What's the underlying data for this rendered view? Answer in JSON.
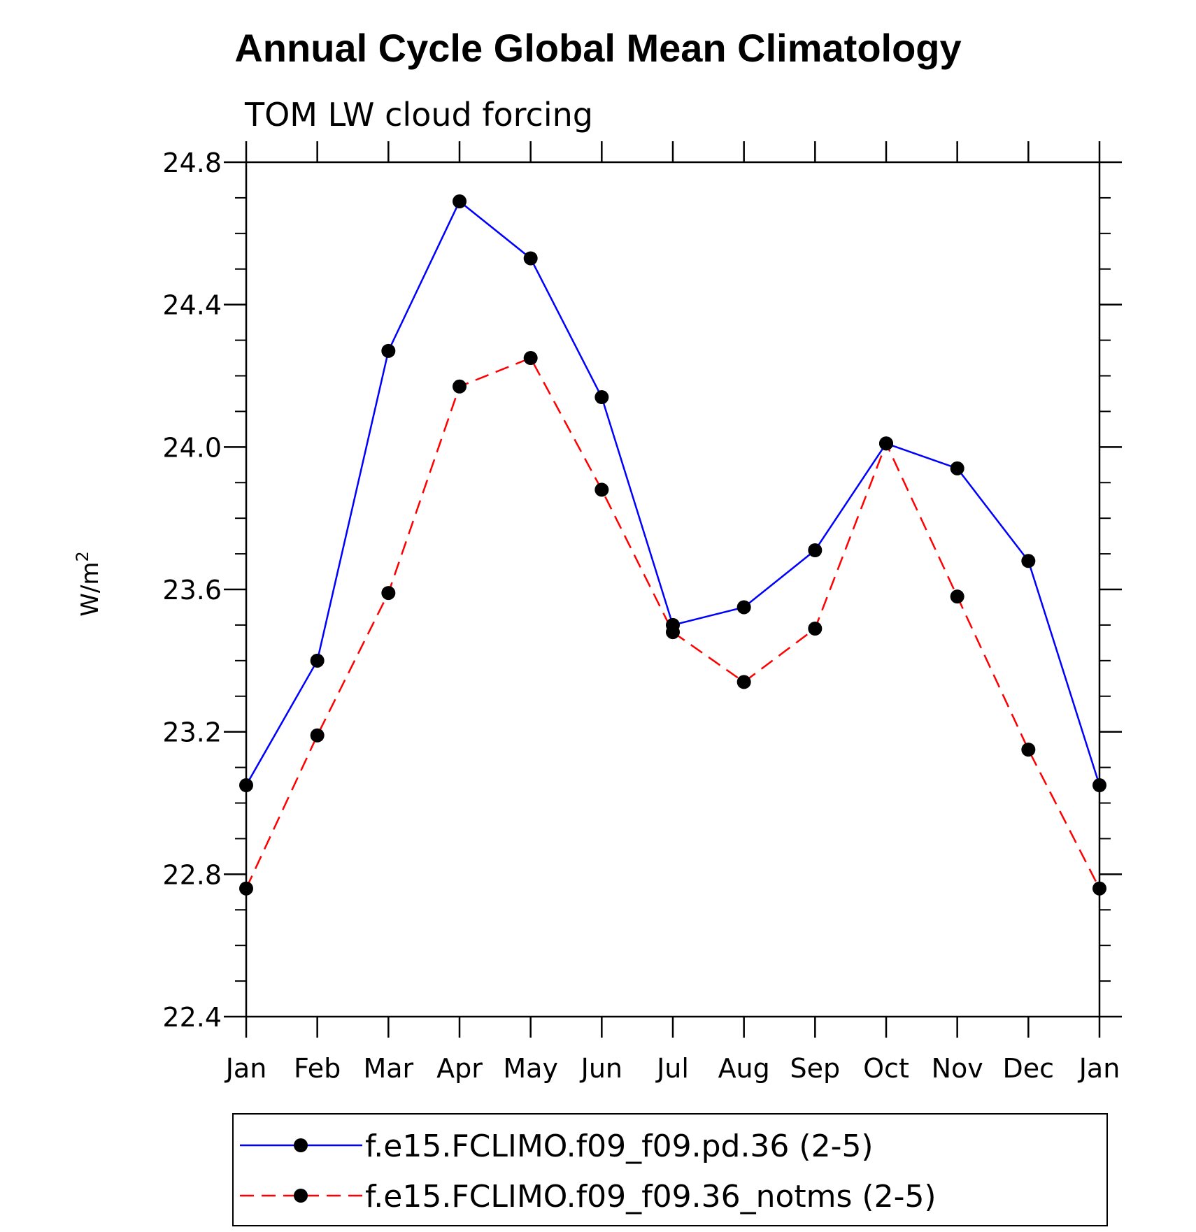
{
  "chart_data": {
    "type": "line",
    "title": "Annual Cycle Global Mean Climatology",
    "subtitle": "TOM LW cloud forcing",
    "ylabel": "W/m",
    "ylabel_superscript": "2",
    "categories": [
      "Jan",
      "Feb",
      "Mar",
      "Apr",
      "May",
      "Jun",
      "Jul",
      "Aug",
      "Sep",
      "Oct",
      "Nov",
      "Dec",
      "Jan"
    ],
    "ylim": [
      22.4,
      24.8
    ],
    "yticks": [
      "22.4",
      "22.8",
      "23.2",
      "23.6",
      "24.0",
      "24.4",
      "24.8"
    ],
    "legend_placement": "bottom",
    "series": [
      {
        "name": "f.e15.FCLIMO.f09_f09.pd.36 (2-5)",
        "color": "#0000ff",
        "dash": "solid",
        "values": [
          23.05,
          23.4,
          24.27,
          24.69,
          24.53,
          24.14,
          23.5,
          23.55,
          23.71,
          24.01,
          23.94,
          23.68,
          23.05
        ]
      },
      {
        "name": "f.e15.FCLIMO.f09_f09.36_notms (2-5)",
        "color": "#ff0000",
        "dash": "dashed",
        "values": [
          22.76,
          23.19,
          23.59,
          24.17,
          24.25,
          23.88,
          23.48,
          23.34,
          23.49,
          24.01,
          23.58,
          23.15,
          22.76
        ]
      }
    ]
  }
}
